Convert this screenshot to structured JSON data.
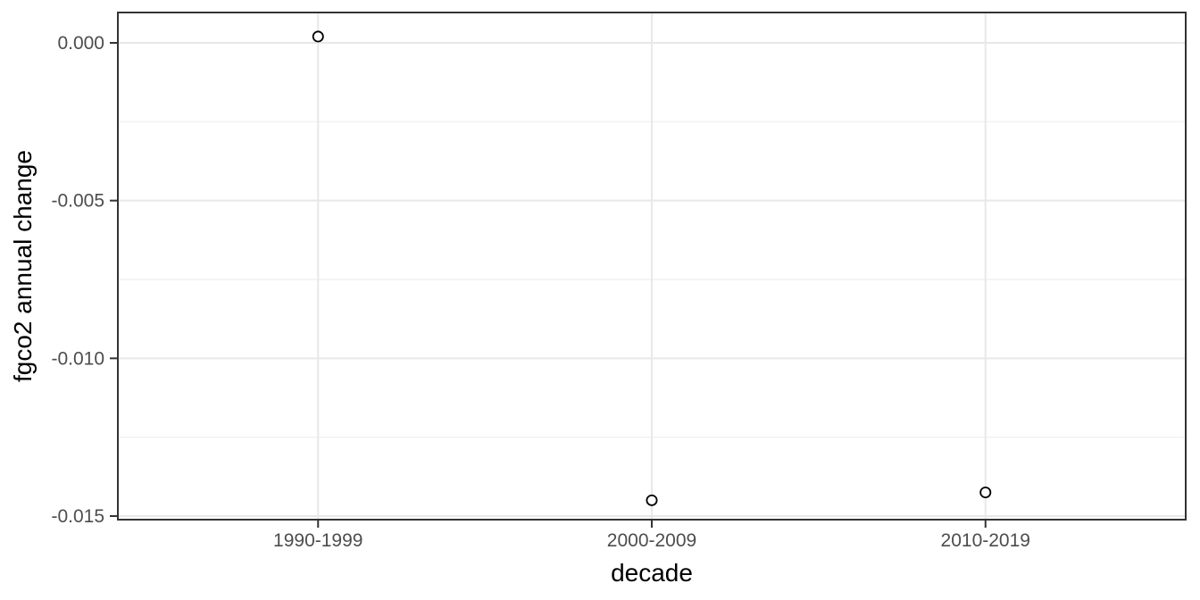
{
  "chart_data": {
    "type": "scatter",
    "title": "",
    "xlabel": "decade",
    "ylabel": "fgco2 annual change",
    "categories": [
      "1990-1999",
      "2000-2009",
      "2010-2019"
    ],
    "values": [
      0.0002,
      -0.0145,
      -0.01425
    ],
    "series": [
      {
        "name": "fgco2 annual change",
        "values": [
          0.0002,
          -0.0145,
          -0.01425
        ]
      }
    ],
    "y_ticks": [
      {
        "value": 0.0,
        "label": "0.000"
      },
      {
        "value": -0.005,
        "label": "-0.005"
      },
      {
        "value": -0.01,
        "label": "-0.010"
      },
      {
        "value": -0.015,
        "label": "-0.015"
      }
    ],
    "y_minor_ticks": [
      -0.0025,
      -0.0075,
      -0.0125
    ],
    "ylim": [
      -0.015113,
      0.000962
    ],
    "grid": true,
    "legend": false,
    "point_style": "open-circle"
  },
  "colors": {
    "background": "#FFFFFF",
    "panel_background": "#FFFFFF",
    "point_stroke": "#000000",
    "point_fill": "#FFFFFF",
    "grid_major": "#E8E8E8",
    "grid_minor": "#F1F1F1",
    "panel_border": "#333333",
    "axis_tick": "#333333",
    "tick_label": "#4D4D4D",
    "axis_title": "#000000"
  }
}
